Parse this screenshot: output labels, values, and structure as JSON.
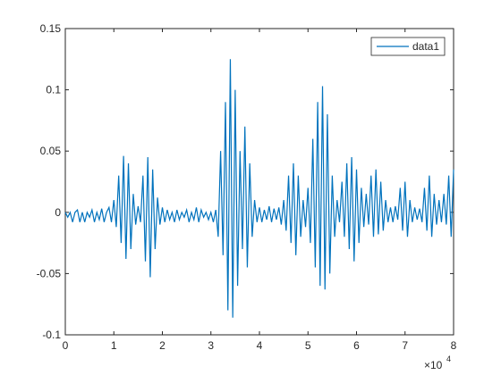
{
  "chart_data": {
    "type": "line",
    "xlim": [
      0,
      80000
    ],
    "ylim": [
      -0.1,
      0.15
    ],
    "xticks": [
      0,
      {
        "value": 10000,
        "label": "1"
      },
      {
        "value": 20000,
        "label": "2"
      },
      {
        "value": 30000,
        "label": "3"
      },
      {
        "value": 40000,
        "label": "4"
      },
      {
        "value": 50000,
        "label": "5"
      },
      {
        "value": 60000,
        "label": "6"
      },
      {
        "value": 70000,
        "label": "7"
      },
      {
        "value": 80000,
        "label": "8"
      }
    ],
    "yticks": [
      -0.1,
      -0.05,
      0,
      0.05,
      0.1,
      0.15
    ],
    "x_exponent_base": "×10",
    "x_exponent": "4",
    "legend": "top-right",
    "x": [
      0,
      500,
      1000,
      1500,
      2000,
      2500,
      3000,
      3500,
      4000,
      4500,
      5000,
      5500,
      6000,
      6500,
      7000,
      7500,
      8000,
      8500,
      9000,
      9500,
      10000,
      10500,
      11000,
      11500,
      12000,
      12500,
      13000,
      13500,
      14000,
      14500,
      15000,
      15500,
      16000,
      16500,
      17000,
      17500,
      18000,
      18500,
      19000,
      19500,
      20000,
      20500,
      21000,
      21500,
      22000,
      22500,
      23000,
      23500,
      24000,
      24500,
      25000,
      25500,
      26000,
      26500,
      27000,
      27500,
      28000,
      28500,
      29000,
      29500,
      30000,
      30500,
      31000,
      31500,
      32000,
      32500,
      33000,
      33500,
      34000,
      34500,
      35000,
      35500,
      36000,
      36500,
      37000,
      37500,
      38000,
      38500,
      39000,
      39500,
      40000,
      40500,
      41000,
      41500,
      42000,
      42500,
      43000,
      43500,
      44000,
      44500,
      45000,
      45500,
      46000,
      46500,
      47000,
      47500,
      48000,
      48500,
      49000,
      49500,
      50000,
      50500,
      51000,
      51500,
      52000,
      52500,
      53000,
      53500,
      54000,
      54500,
      55000,
      55500,
      56000,
      56500,
      57000,
      57500,
      58000,
      58500,
      59000,
      59500,
      60000,
      60500,
      61000,
      61500,
      62000,
      62500,
      63000,
      63500,
      64000,
      64500,
      65000,
      65500,
      66000,
      66500,
      67000,
      67500,
      68000,
      68500,
      69000,
      69500,
      70000,
      70500,
      71000,
      71500,
      72000,
      72500,
      73000,
      73500,
      74000,
      74500,
      75000,
      75500,
      76000,
      76500,
      77000,
      77500,
      78000,
      78500,
      79000,
      79500,
      80000
    ],
    "series": [
      {
        "name": "data1",
        "color": "#0072bd",
        "values": [
          0,
          -0.004,
          0,
          -0.008,
          0,
          0.002,
          -0.008,
          0,
          -0.008,
          0,
          -0.004,
          0.002,
          -0.008,
          0,
          -0.006,
          0.003,
          -0.008,
          0,
          0.004,
          -0.008,
          0.01,
          -0.012,
          0.03,
          -0.025,
          0.046,
          -0.038,
          0.04,
          -0.03,
          0.015,
          -0.01,
          0.005,
          -0.008,
          0.03,
          -0.04,
          0.045,
          -0.053,
          0.035,
          -0.03,
          0.012,
          -0.01,
          0.004,
          -0.008,
          0.002,
          -0.006,
          0,
          -0.008,
          0.002,
          -0.006,
          0,
          -0.004,
          0.002,
          -0.008,
          0,
          -0.006,
          0.004,
          -0.008,
          0.002,
          -0.004,
          0,
          -0.006,
          0,
          -0.008,
          0.002,
          -0.02,
          0.05,
          -0.035,
          0.09,
          -0.08,
          0.125,
          -0.086,
          0.1,
          -0.06,
          0.05,
          -0.03,
          0.07,
          -0.045,
          0.04,
          -0.02,
          0.01,
          -0.008,
          0.004,
          -0.008,
          0.002,
          -0.006,
          0.005,
          -0.008,
          0.003,
          -0.006,
          0.004,
          -0.01,
          0.01,
          -0.015,
          0.03,
          -0.025,
          0.04,
          -0.035,
          0.03,
          -0.02,
          0.01,
          -0.012,
          0.02,
          -0.025,
          0.06,
          -0.045,
          0.09,
          -0.06,
          0.103,
          -0.063,
          0.08,
          -0.05,
          0.03,
          -0.02,
          0.01,
          -0.008,
          0.025,
          -0.02,
          0.04,
          -0.03,
          0.045,
          -0.04,
          0.035,
          -0.025,
          0.02,
          -0.012,
          0.015,
          -0.01,
          0.03,
          -0.02,
          0.035,
          -0.018,
          0.025,
          -0.015,
          0.01,
          -0.008,
          0.004,
          -0.008,
          0.005,
          -0.006,
          0.02,
          -0.015,
          0.025,
          -0.02,
          0.01,
          -0.008,
          0.004,
          -0.006,
          0.003,
          -0.008,
          0.02,
          -0.015,
          0.03,
          -0.02,
          0.015,
          -0.01,
          0.01,
          -0.008,
          0.015,
          -0.01,
          0.03,
          -0.02,
          0.035
        ]
      }
    ]
  }
}
